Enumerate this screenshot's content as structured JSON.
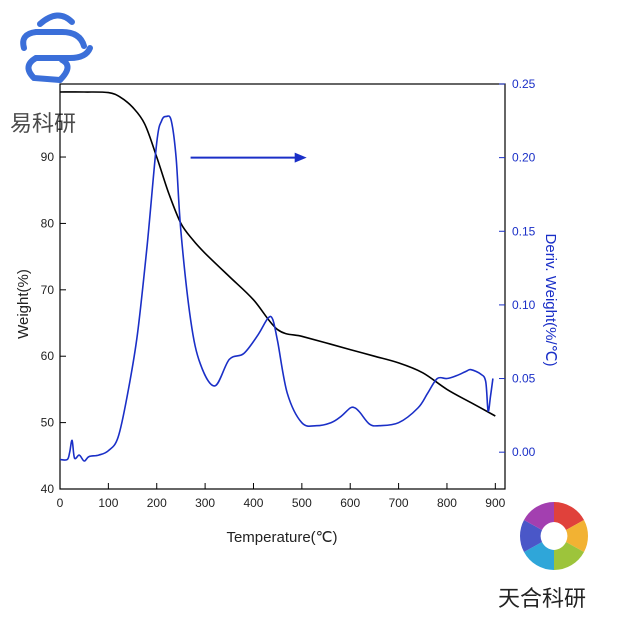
{
  "watermark_top": {
    "text": "易科研",
    "color": "#3b6fd9"
  },
  "watermark_bottom": {
    "text": "天合科研"
  },
  "chart_data": {
    "type": "line",
    "xlabel": "Temperature(℃)",
    "ylabel_left": "Weight(%)",
    "ylabel_right": "Deriv. Weight(%/℃)",
    "xlim": [
      0,
      920
    ],
    "ylim_left": [
      40,
      101
    ],
    "ylim_right": [
      -0.025,
      0.25
    ],
    "x_ticks": [
      0,
      100,
      200,
      300,
      400,
      500,
      600,
      700,
      800,
      900
    ],
    "y_left_ticks": [
      40,
      50,
      60,
      70,
      80,
      90
    ],
    "y_right_ticks": [
      0.0,
      0.05,
      0.1,
      0.15,
      0.2,
      0.25
    ],
    "y_right_tick_labels": [
      "0.00",
      "0.05",
      "0.10",
      "0.15",
      "0.20",
      "0.25"
    ],
    "grid": false,
    "series": [
      {
        "axis": "left",
        "color": "#000000",
        "x": [
          0,
          50,
          100,
          125,
          150,
          175,
          200,
          225,
          250,
          275,
          300,
          350,
          400,
          450,
          500,
          550,
          600,
          650,
          700,
          750,
          800,
          850,
          900
        ],
        "y": [
          99.8,
          99.8,
          99.7,
          99,
          97.5,
          95,
          90,
          84.5,
          80,
          77.5,
          75.5,
          72,
          68.5,
          64,
          63,
          62,
          61,
          60,
          59,
          57.5,
          55,
          53,
          51
        ]
      },
      {
        "axis": "right",
        "color": "#1a2fc7",
        "x": [
          0,
          15,
          20,
          25,
          30,
          40,
          50,
          60,
          80,
          100,
          120,
          140,
          160,
          180,
          200,
          210,
          220,
          230,
          240,
          250,
          270,
          290,
          320,
          350,
          380,
          410,
          430,
          440,
          450,
          470,
          500,
          530,
          560,
          580,
          600,
          610,
          620,
          640,
          660,
          700,
          740,
          760,
          780,
          800,
          820,
          840,
          850,
          870,
          880,
          885,
          890,
          895
        ],
        "y": [
          -0.005,
          -0.005,
          0.0,
          0.008,
          -0.004,
          -0.002,
          -0.006,
          -0.003,
          -0.002,
          0.001,
          0.01,
          0.04,
          0.08,
          0.14,
          0.21,
          0.225,
          0.228,
          0.225,
          0.2,
          0.15,
          0.09,
          0.06,
          0.045,
          0.063,
          0.067,
          0.08,
          0.091,
          0.09,
          0.075,
          0.04,
          0.02,
          0.018,
          0.02,
          0.024,
          0.03,
          0.03,
          0.027,
          0.019,
          0.018,
          0.02,
          0.03,
          0.04,
          0.05,
          0.05,
          0.052,
          0.055,
          0.056,
          0.053,
          0.048,
          0.028,
          0.038,
          0.05
        ]
      }
    ],
    "annotation": {
      "type": "arrow",
      "color": "#1a2fc7",
      "x_from": 270,
      "x_to": 510,
      "y_right": 0.2
    }
  }
}
